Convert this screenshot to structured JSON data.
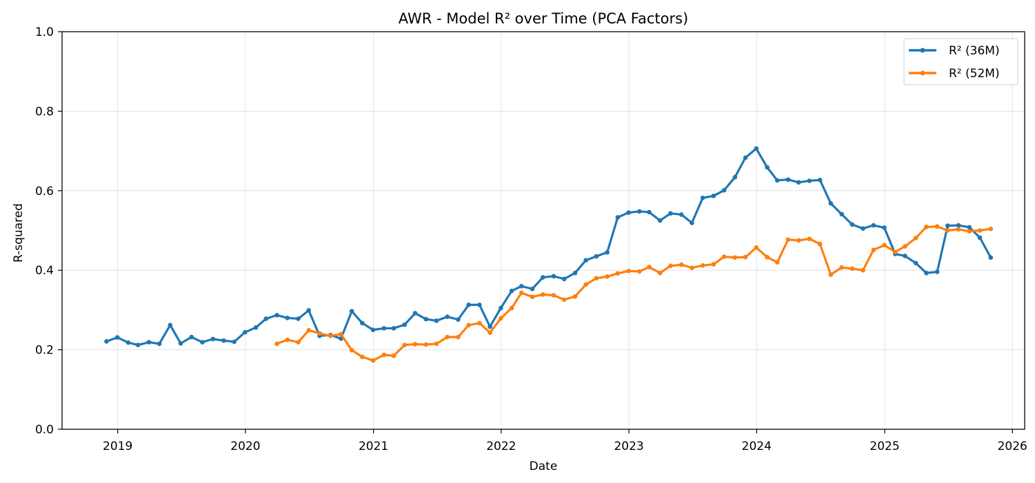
{
  "chart_data": {
    "type": "line",
    "title": "AWR - Model R² over Time (PCA Factors)",
    "xlabel": "Date",
    "ylabel": "R-squared",
    "ylim": [
      0,
      1.0
    ],
    "xlim": [
      "2018-07-26",
      "2026-02-05"
    ],
    "grid": true,
    "legend_position": "top-right",
    "x_ticks": [
      "2019",
      "2020",
      "2021",
      "2022",
      "2023",
      "2024",
      "2025",
      "2026"
    ],
    "y_ticks": [
      "0.0",
      "0.2",
      "0.4",
      "0.6",
      "0.8",
      "1.0"
    ],
    "series": [
      {
        "name": "R² (36M)",
        "color": "#1f77b4",
        "points": [
          [
            "2018-11-30",
            0.221
          ],
          [
            "2018-12-31",
            0.231
          ],
          [
            "2019-01-31",
            0.218
          ],
          [
            "2019-02-28",
            0.212
          ],
          [
            "2019-03-31",
            0.219
          ],
          [
            "2019-04-30",
            0.215
          ],
          [
            "2019-05-31",
            0.262
          ],
          [
            "2019-06-30",
            0.216
          ],
          [
            "2019-07-31",
            0.232
          ],
          [
            "2019-08-31",
            0.219
          ],
          [
            "2019-09-30",
            0.227
          ],
          [
            "2019-10-31",
            0.223
          ],
          [
            "2019-11-30",
            0.22
          ],
          [
            "2019-12-31",
            0.244
          ],
          [
            "2020-01-31",
            0.256
          ],
          [
            "2020-02-29",
            0.278
          ],
          [
            "2020-03-31",
            0.287
          ],
          [
            "2020-04-30",
            0.28
          ],
          [
            "2020-05-31",
            0.278
          ],
          [
            "2020-06-30",
            0.299
          ],
          [
            "2020-07-31",
            0.235
          ],
          [
            "2020-08-31",
            0.237
          ],
          [
            "2020-09-30",
            0.228
          ],
          [
            "2020-10-31",
            0.297
          ],
          [
            "2020-11-30",
            0.267
          ],
          [
            "2020-12-31",
            0.25
          ],
          [
            "2021-01-31",
            0.254
          ],
          [
            "2021-02-28",
            0.254
          ],
          [
            "2021-03-31",
            0.263
          ],
          [
            "2021-04-30",
            0.292
          ],
          [
            "2021-05-31",
            0.277
          ],
          [
            "2021-06-30",
            0.273
          ],
          [
            "2021-07-31",
            0.283
          ],
          [
            "2021-08-31",
            0.276
          ],
          [
            "2021-09-30",
            0.313
          ],
          [
            "2021-10-31",
            0.313
          ],
          [
            "2021-11-30",
            0.258
          ],
          [
            "2021-12-31",
            0.305
          ],
          [
            "2022-01-31",
            0.348
          ],
          [
            "2022-02-28",
            0.36
          ],
          [
            "2022-03-31",
            0.353
          ],
          [
            "2022-04-30",
            0.382
          ],
          [
            "2022-05-31",
            0.385
          ],
          [
            "2022-06-30",
            0.378
          ],
          [
            "2022-07-31",
            0.393
          ],
          [
            "2022-08-31",
            0.425
          ],
          [
            "2022-09-30",
            0.435
          ],
          [
            "2022-10-31",
            0.445
          ],
          [
            "2022-11-30",
            0.533
          ],
          [
            "2022-12-31",
            0.545
          ],
          [
            "2023-01-31",
            0.548
          ],
          [
            "2023-02-28",
            0.546
          ],
          [
            "2023-03-31",
            0.525
          ],
          [
            "2023-04-30",
            0.543
          ],
          [
            "2023-05-31",
            0.54
          ],
          [
            "2023-06-30",
            0.519
          ],
          [
            "2023-07-31",
            0.582
          ],
          [
            "2023-08-31",
            0.587
          ],
          [
            "2023-09-30",
            0.601
          ],
          [
            "2023-10-31",
            0.634
          ],
          [
            "2023-11-30",
            0.683
          ],
          [
            "2023-12-31",
            0.706
          ],
          [
            "2024-01-31",
            0.659
          ],
          [
            "2024-02-29",
            0.626
          ],
          [
            "2024-03-31",
            0.628
          ],
          [
            "2024-04-30",
            0.621
          ],
          [
            "2024-05-31",
            0.625
          ],
          [
            "2024-06-30",
            0.627
          ],
          [
            "2024-07-31",
            0.568
          ],
          [
            "2024-08-31",
            0.541
          ],
          [
            "2024-09-30",
            0.515
          ],
          [
            "2024-10-31",
            0.505
          ],
          [
            "2024-11-30",
            0.513
          ],
          [
            "2024-12-31",
            0.507
          ],
          [
            "2025-01-31",
            0.441
          ],
          [
            "2025-02-28",
            0.436
          ],
          [
            "2025-03-31",
            0.418
          ],
          [
            "2025-04-30",
            0.393
          ],
          [
            "2025-05-31",
            0.396
          ],
          [
            "2025-06-30",
            0.512
          ],
          [
            "2025-07-31",
            0.513
          ],
          [
            "2025-08-31",
            0.508
          ],
          [
            "2025-09-30",
            0.482
          ],
          [
            "2025-10-31",
            0.432
          ]
        ]
      },
      {
        "name": "R² (52M)",
        "color": "#ff7f0e",
        "points": [
          [
            "2020-03-31",
            0.215
          ],
          [
            "2020-04-30",
            0.225
          ],
          [
            "2020-05-31",
            0.219
          ],
          [
            "2020-06-30",
            0.249
          ],
          [
            "2020-07-31",
            0.241
          ],
          [
            "2020-08-31",
            0.235
          ],
          [
            "2020-09-30",
            0.239
          ],
          [
            "2020-10-31",
            0.199
          ],
          [
            "2020-11-30",
            0.182
          ],
          [
            "2020-12-31",
            0.173
          ],
          [
            "2021-01-31",
            0.187
          ],
          [
            "2021-02-28",
            0.185
          ],
          [
            "2021-03-31",
            0.212
          ],
          [
            "2021-04-30",
            0.214
          ],
          [
            "2021-05-31",
            0.213
          ],
          [
            "2021-06-30",
            0.215
          ],
          [
            "2021-07-31",
            0.232
          ],
          [
            "2021-08-31",
            0.232
          ],
          [
            "2021-09-30",
            0.262
          ],
          [
            "2021-10-31",
            0.267
          ],
          [
            "2021-11-30",
            0.243
          ],
          [
            "2021-12-31",
            0.279
          ],
          [
            "2022-01-31",
            0.305
          ],
          [
            "2022-02-28",
            0.343
          ],
          [
            "2022-03-31",
            0.333
          ],
          [
            "2022-04-30",
            0.339
          ],
          [
            "2022-05-31",
            0.337
          ],
          [
            "2022-06-30",
            0.326
          ],
          [
            "2022-07-31",
            0.334
          ],
          [
            "2022-08-31",
            0.364
          ],
          [
            "2022-09-30",
            0.38
          ],
          [
            "2022-10-31",
            0.384
          ],
          [
            "2022-11-30",
            0.392
          ],
          [
            "2022-12-31",
            0.398
          ],
          [
            "2023-01-31",
            0.397
          ],
          [
            "2023-02-28",
            0.408
          ],
          [
            "2023-03-31",
            0.393
          ],
          [
            "2023-04-30",
            0.411
          ],
          [
            "2023-05-31",
            0.414
          ],
          [
            "2023-06-30",
            0.406
          ],
          [
            "2023-07-31",
            0.412
          ],
          [
            "2023-08-31",
            0.415
          ],
          [
            "2023-09-30",
            0.434
          ],
          [
            "2023-10-31",
            0.432
          ],
          [
            "2023-11-30",
            0.433
          ],
          [
            "2023-12-31",
            0.457
          ],
          [
            "2024-01-31",
            0.433
          ],
          [
            "2024-02-29",
            0.42
          ],
          [
            "2024-03-31",
            0.477
          ],
          [
            "2024-04-30",
            0.475
          ],
          [
            "2024-05-31",
            0.479
          ],
          [
            "2024-06-30",
            0.466
          ],
          [
            "2024-07-31",
            0.389
          ],
          [
            "2024-08-31",
            0.407
          ],
          [
            "2024-09-30",
            0.404
          ],
          [
            "2024-10-31",
            0.4
          ],
          [
            "2024-11-30",
            0.451
          ],
          [
            "2024-12-31",
            0.463
          ],
          [
            "2025-01-31",
            0.446
          ],
          [
            "2025-02-28",
            0.46
          ],
          [
            "2025-03-31",
            0.481
          ],
          [
            "2025-04-30",
            0.509
          ],
          [
            "2025-05-31",
            0.51
          ],
          [
            "2025-06-30",
            0.5
          ],
          [
            "2025-07-31",
            0.503
          ],
          [
            "2025-08-31",
            0.498
          ],
          [
            "2025-09-30",
            0.5
          ],
          [
            "2025-10-31",
            0.504
          ]
        ]
      }
    ]
  }
}
